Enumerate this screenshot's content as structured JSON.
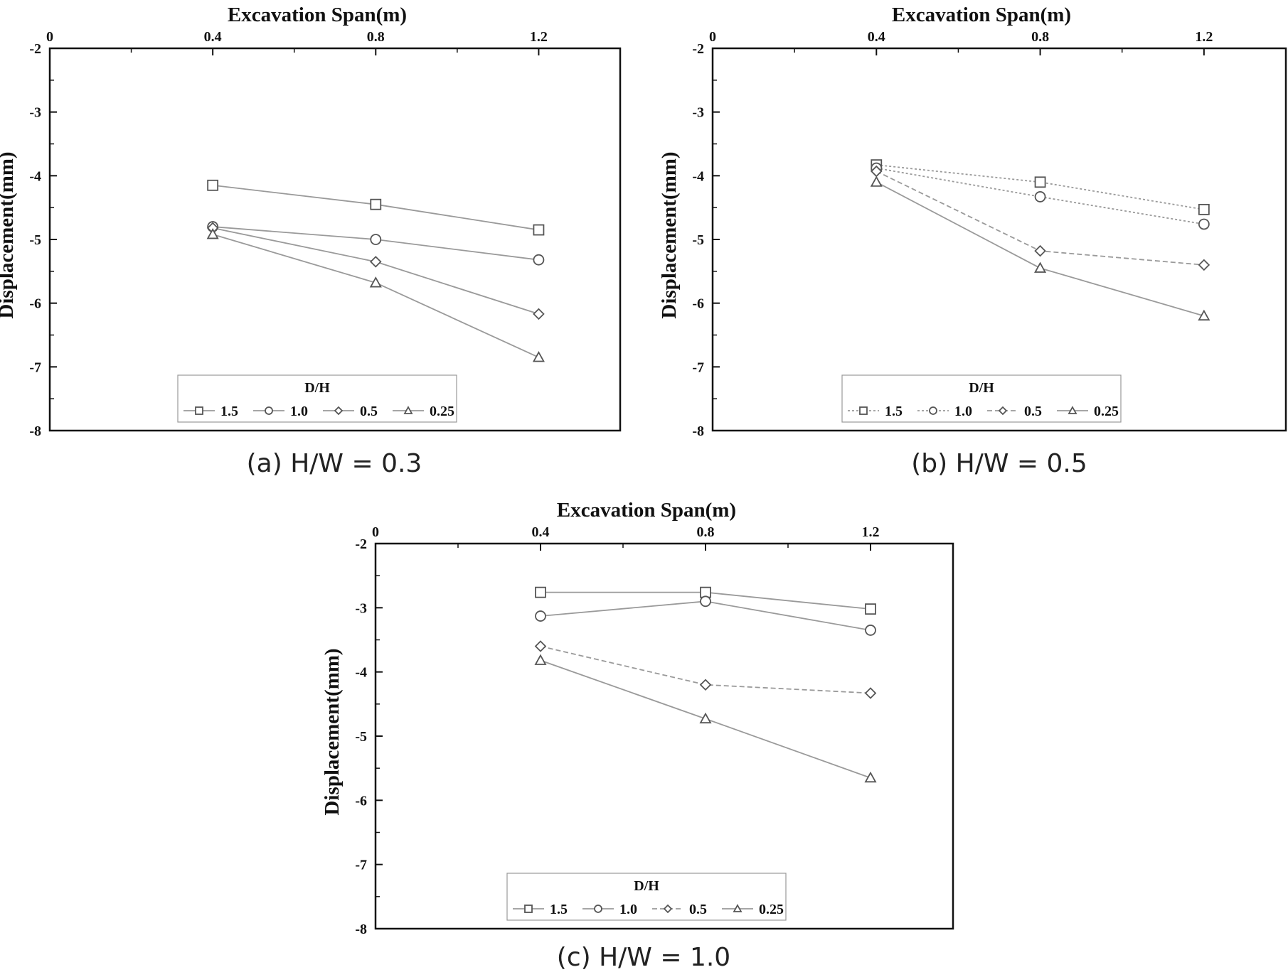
{
  "chart_data": [
    {
      "type": "line",
      "caption": "(a) H/W = 0.3",
      "xlabel": "Excavation Span(m)",
      "ylabel": "Displacement(mm)",
      "xlim": [
        0,
        1.4
      ],
      "ylim": [
        -8,
        -2
      ],
      "x_ticks": [
        "0",
        "0.4",
        "0.8",
        "1.2"
      ],
      "y_ticks": [
        "-2",
        "-3",
        "-4",
        "-5",
        "-6",
        "-7",
        "-8"
      ],
      "x_axis_position": "top",
      "legend": {
        "title": "D/H",
        "placement": "bottom-center"
      },
      "x": [
        0.4,
        0.8,
        1.2
      ],
      "series": [
        {
          "name": "1.5",
          "marker": "square",
          "line": "solid",
          "values": [
            -4.15,
            -4.45,
            -4.85
          ]
        },
        {
          "name": "1.0",
          "marker": "circle",
          "line": "solid",
          "values": [
            -4.8,
            -5.0,
            -5.32
          ]
        },
        {
          "name": "0.5",
          "marker": "diamond",
          "line": "solid",
          "values": [
            -4.82,
            -5.35,
            -6.17
          ]
        },
        {
          "name": "0.25",
          "marker": "triangle",
          "line": "solid",
          "values": [
            -4.92,
            -5.68,
            -6.85
          ]
        }
      ]
    },
    {
      "type": "line",
      "caption": "(b) H/W = 0.5",
      "xlabel": "Excavation Span(m)",
      "ylabel": "Displacement(mm)",
      "xlim": [
        0,
        1.4
      ],
      "ylim": [
        -8,
        -2
      ],
      "x_ticks": [
        "0",
        "0.4",
        "0.8",
        "1.2"
      ],
      "y_ticks": [
        "-2",
        "-3",
        "-4",
        "-5",
        "-6",
        "-7",
        "-8"
      ],
      "x_axis_position": "top",
      "legend": {
        "title": "D/H",
        "placement": "bottom-center"
      },
      "x": [
        0.4,
        0.8,
        1.2
      ],
      "series": [
        {
          "name": "1.5",
          "marker": "square",
          "line": "dotted",
          "values": [
            -3.83,
            -4.1,
            -4.53
          ]
        },
        {
          "name": "1.0",
          "marker": "circle",
          "line": "dotted",
          "values": [
            -3.88,
            -4.33,
            -4.76
          ]
        },
        {
          "name": "0.5",
          "marker": "diamond",
          "line": "dashed",
          "values": [
            -3.93,
            -5.18,
            -5.4
          ]
        },
        {
          "name": "0.25",
          "marker": "triangle",
          "line": "solid",
          "values": [
            -4.1,
            -5.45,
            -6.2
          ]
        }
      ]
    },
    {
      "type": "line",
      "caption": "(c) H/W = 1.0",
      "xlabel": "Excavation Span(m)",
      "ylabel": "Displacement(mm)",
      "xlim": [
        0,
        1.4
      ],
      "ylim": [
        -8,
        -2
      ],
      "x_ticks": [
        "0",
        "0.4",
        "0.8",
        "1.2"
      ],
      "y_ticks": [
        "-2",
        "-3",
        "-4",
        "-5",
        "-6",
        "-7",
        "-8"
      ],
      "x_axis_position": "top",
      "legend": {
        "title": "D/H",
        "placement": "bottom-center"
      },
      "x": [
        0.4,
        0.8,
        1.2
      ],
      "series": [
        {
          "name": "1.5",
          "marker": "square",
          "line": "solid",
          "values": [
            -2.76,
            -2.76,
            -3.02
          ]
        },
        {
          "name": "1.0",
          "marker": "circle",
          "line": "solid",
          "values": [
            -3.13,
            -2.9,
            -3.35
          ]
        },
        {
          "name": "0.5",
          "marker": "diamond",
          "line": "dashed",
          "values": [
            -3.6,
            -4.2,
            -4.33
          ]
        },
        {
          "name": "0.25",
          "marker": "triangle",
          "line": "solid",
          "values": [
            -3.82,
            -4.73,
            -5.65
          ]
        }
      ]
    }
  ]
}
